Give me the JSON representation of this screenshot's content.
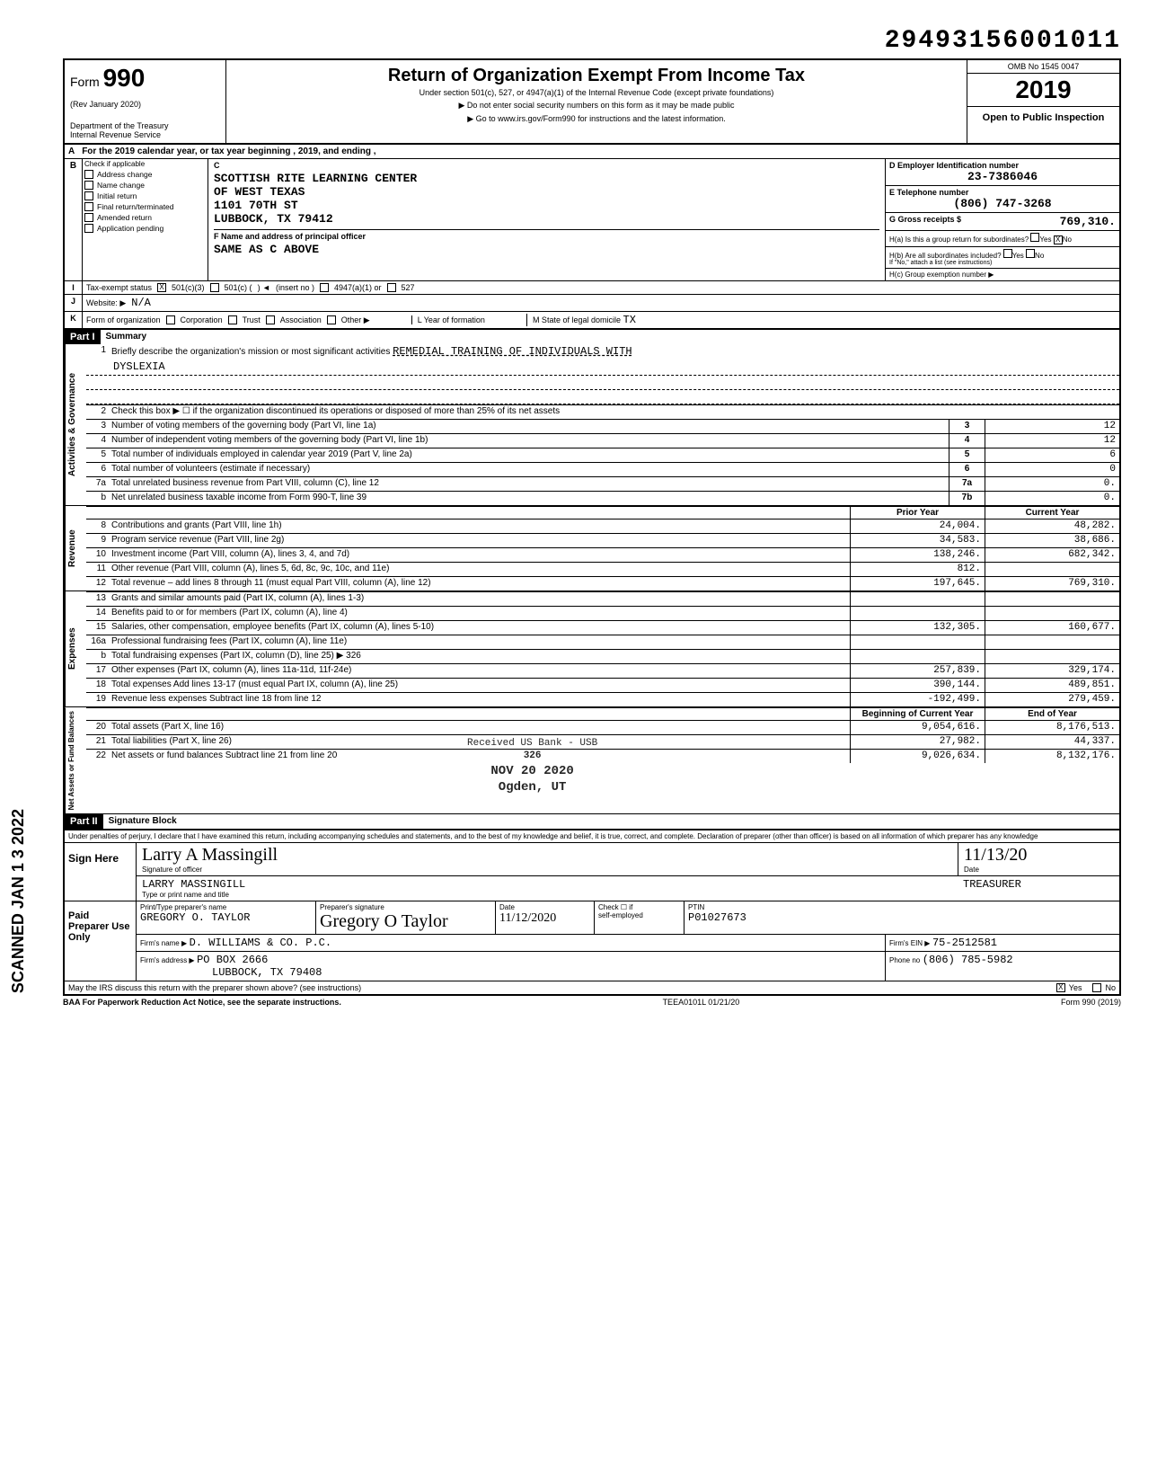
{
  "stamp_number": "29493156001011",
  "header": {
    "form_prefix": "Form",
    "form_number": "990",
    "rev": "(Rev January 2020)",
    "dept": "Department of the Treasury\nInternal Revenue Service",
    "title": "Return of Organization Exempt From Income Tax",
    "sub": "Under section 501(c), 527, or 4947(a)(1) of the Internal Revenue Code (except private foundations)",
    "sub2a": "▶ Do not enter social security numbers on this form as it may be made public",
    "sub2b": "▶ Go to www.irs.gov/Form990 for instructions and the latest information.",
    "omb": "OMB No 1545 0047",
    "year": "2019",
    "open": "Open to Public Inspection"
  },
  "row_a": "For the 2019 calendar year, or tax year beginning                    , 2019, and ending                    ,",
  "checks": {
    "b": "B",
    "applicable": "Check if applicable",
    "items": [
      "Address change",
      "Name change",
      "Initial return",
      "Final return/terminated",
      "Amended return",
      "Application pending"
    ]
  },
  "section_c": {
    "lab": "C",
    "name1": "SCOTTISH RITE LEARNING CENTER",
    "name2": "OF WEST TEXAS",
    "addr1": "1101 70TH ST",
    "addr2": "LUBBOCK, TX 79412",
    "f_lab": "F  Name and address of principal officer",
    "f_val": "SAME AS C ABOVE"
  },
  "section_d": {
    "d_lab": "D  Employer Identification number",
    "d_val": "23-7386046",
    "e_lab": "E  Telephone number",
    "e_val": "(806) 747-3268",
    "g_lab": "G  Gross receipts $",
    "g_val": "769,310.",
    "ha": "H(a) Is this a group return for subordinates?",
    "ha_yes": "Yes",
    "ha_no": "No",
    "ha_ans": "X",
    "hb": "H(b) Are all subordinates included?",
    "hb_yes": "Yes",
    "hb_no": "No",
    "hb_note": "If \"No,\" attach a list (see instructions)",
    "hc": "H(c) Group exemption number ▶"
  },
  "row_i": {
    "lab": "I",
    "txt": "Tax-exempt status",
    "c3": "501(c)(3)",
    "c3_chk": "X",
    "c": "501(c) (",
    "insert": "(insert no )",
    "a1": "4947(a)(1) or",
    "527": "527"
  },
  "row_j": {
    "lab": "J",
    "txt": "Website: ▶",
    "val": "N/A"
  },
  "row_k": {
    "lab": "K",
    "txt": "Form of organization",
    "corp": "Corporation",
    "trust": "Trust",
    "assoc": "Association",
    "other": "Other ▶",
    "l": "L Year of formation",
    "m": "M State of legal domicile",
    "m_val": "TX"
  },
  "part1": {
    "head": "Part I",
    "title": "Summary",
    "l1": "Briefly describe the organization's mission or most significant activities",
    "mission1": "REMEDIAL TRAINING OF INDIVIDUALS WITH",
    "mission2": "DYSLEXIA",
    "l2": "Check this box ▶ ☐ if the organization discontinued its operations or disposed of more than 25% of its net assets",
    "governance": [
      {
        "n": "3",
        "t": "Number of voting members of the governing body (Part VI, line 1a)",
        "b": "3",
        "v": "12"
      },
      {
        "n": "4",
        "t": "Number of independent voting members of the governing body (Part VI, line 1b)",
        "b": "4",
        "v": "12"
      },
      {
        "n": "5",
        "t": "Total number of individuals employed in calendar year 2019 (Part V, line 2a)",
        "b": "5",
        "v": "6"
      },
      {
        "n": "6",
        "t": "Total number of volunteers (estimate if necessary)",
        "b": "6",
        "v": "0"
      },
      {
        "n": "7a",
        "t": "Total unrelated business revenue from Part VIII, column (C), line 12",
        "b": "7a",
        "v": "0."
      },
      {
        "n": "b",
        "t": "Net unrelated business taxable income from Form 990-T, line 39",
        "b": "7b",
        "v": "0."
      }
    ],
    "year_cols": {
      "prior": "Prior Year",
      "current": "Current Year"
    },
    "revenue": [
      {
        "n": "8",
        "t": "Contributions and grants (Part VIII, line 1h)",
        "p": "24,004.",
        "c": "48,282."
      },
      {
        "n": "9",
        "t": "Program service revenue (Part VIII, line 2g)",
        "p": "34,583.",
        "c": "38,686."
      },
      {
        "n": "10",
        "t": "Investment income (Part VIII, column (A), lines 3, 4, and 7d)",
        "p": "138,246.",
        "c": "682,342."
      },
      {
        "n": "11",
        "t": "Other revenue (Part VIII, column (A), lines 5, 6d, 8c, 9c, 10c, and 11e)",
        "p": "812.",
        "c": ""
      },
      {
        "n": "12",
        "t": "Total revenue – add lines 8 through 11 (must equal Part VIII, column (A), line 12)",
        "p": "197,645.",
        "c": "769,310."
      }
    ],
    "expenses": [
      {
        "n": "13",
        "t": "Grants and similar amounts paid (Part IX, column (A), lines 1-3)",
        "p": "",
        "c": ""
      },
      {
        "n": "14",
        "t": "Benefits paid to or for members (Part IX, column (A), line 4)",
        "p": "",
        "c": ""
      },
      {
        "n": "15",
        "t": "Salaries, other compensation, employee benefits (Part IX, column (A), lines 5-10)",
        "p": "132,305.",
        "c": "160,677."
      },
      {
        "n": "16a",
        "t": "Professional fundraising fees (Part IX, column (A), line 11e)",
        "p": "",
        "c": ""
      },
      {
        "n": "b",
        "t": "Total fundraising expenses (Part IX, column (D), line 25) ▶    326",
        "p": "",
        "c": ""
      },
      {
        "n": "17",
        "t": "Other expenses (Part IX, column (A), lines 11a-11d, 11f-24e)",
        "p": "257,839.",
        "c": "329,174."
      },
      {
        "n": "18",
        "t": "Total expenses  Add lines 13-17 (must equal Part IX, column (A), line 25)",
        "p": "390,144.",
        "c": "489,851."
      },
      {
        "n": "19",
        "t": "Revenue less expenses  Subtract line 18 from line 12",
        "p": "-192,499.",
        "c": "279,459."
      }
    ],
    "net_cols": {
      "beg": "Beginning of Current Year",
      "end": "End of Year"
    },
    "nets": [
      {
        "n": "20",
        "t": "Total assets (Part X, line 16)",
        "p": "9,054,616.",
        "c": "8,176,513."
      },
      {
        "n": "21",
        "t": "Total liabilities (Part X, line 26)",
        "p": "27,982.",
        "c": "44,337."
      },
      {
        "n": "22",
        "t": "Net assets or fund balances  Subtract line 21 from line 20",
        "p": "9,026,634.",
        "c": "8,132,176."
      }
    ],
    "side_gov": "Activities & Governance",
    "side_rev": "Revenue",
    "side_exp": "Expenses",
    "side_net": "Net Assets or\nFund Balances"
  },
  "part2": {
    "head": "Part II",
    "title": "Signature Block",
    "under": "Under penalties of perjury, I declare that I have examined this return, including accompanying schedules and statements, and to the best of my knowledge and belief, it is true, correct, and complete. Declaration of preparer (other than officer) is based on all information of which preparer has any knowledge",
    "sign_here": "Sign Here",
    "sig_lab": "Signature of officer",
    "date_lab": "Date",
    "date_val": "11/13/20",
    "name": "LARRY MASSINGILL",
    "title_lab": "Type or print name and title",
    "title_val": "TREASURER",
    "paid": "Paid Preparer Use Only",
    "prep_name_lab": "Print/Type preparer's name",
    "prep_name": "GREGORY O. TAYLOR",
    "prep_sig_lab": "Preparer's signature",
    "prep_date_lab": "Date",
    "prep_date": "11/12/2020",
    "self_emp": "self-employed",
    "check_lab": "Check ☐ if",
    "ptin_lab": "PTIN",
    "ptin": "P01027673",
    "firm_name_lab": "Firm's name ▶",
    "firm_name": "D. WILLIAMS & CO. P.C.",
    "firm_addr_lab": "Firm's address ▶",
    "firm_addr1": "PO BOX 2666",
    "firm_addr2": "LUBBOCK, TX 79408",
    "firm_ein_lab": "Firm's EIN ▶",
    "firm_ein": "75-2512581",
    "phone_lab": "Phone no",
    "phone": "(806) 785-5982",
    "discuss": "May the IRS discuss this return with the preparer shown above? (see instructions)",
    "discuss_yes": "Yes",
    "discuss_no": "No",
    "discuss_ans": "X"
  },
  "footer": {
    "baa": "BAA  For Paperwork Reduction Act Notice, see the separate instructions.",
    "teea": "TEEA0101L 01/21/20",
    "form": "Form 990 (2019)"
  },
  "scanned": "SCANNED JAN 1 3 2022",
  "stamp_mid": {
    "l1": "Received US Bank - USB",
    "l2": "326",
    "l3": "NOV 20 2020",
    "l4": "Ogden, UT"
  }
}
